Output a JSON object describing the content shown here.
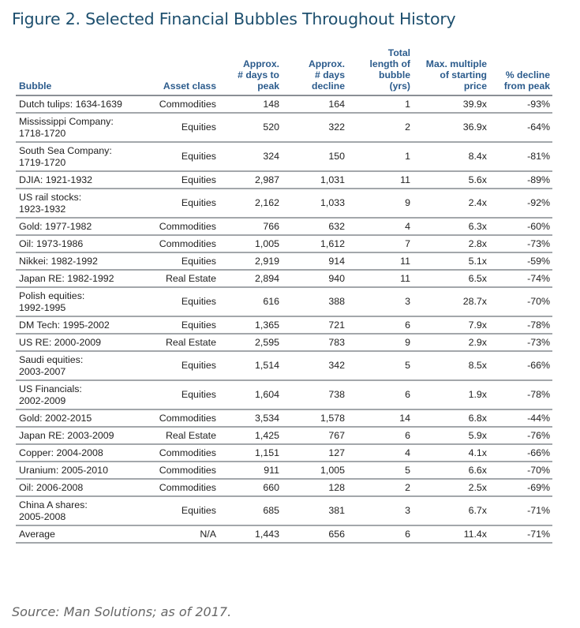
{
  "title": "Figure 2. Selected Financial Bubbles Throughout History",
  "table": {
    "headers": [
      [
        "Bubble"
      ],
      [
        "Asset class"
      ],
      [
        "Approx.",
        "# days to",
        "peak"
      ],
      [
        "Approx.",
        "# days",
        "decline"
      ],
      [
        "Total",
        "length of",
        "bubble",
        "(yrs)"
      ],
      [
        "Max. multiple",
        "of starting",
        "price"
      ],
      [
        "% decline",
        "from peak"
      ]
    ],
    "rows": [
      {
        "bubble": [
          "Dutch tulips: 1634-1639"
        ],
        "asset": "Commodities",
        "peak": "148",
        "decline": "164",
        "yrs": "1",
        "multiple": "39.9x",
        "pct": "-93%"
      },
      {
        "bubble": [
          "Mississippi Company:",
          "1718-1720"
        ],
        "asset": "Equities",
        "peak": "520",
        "decline": "322",
        "yrs": "2",
        "multiple": "36.9x",
        "pct": "-64%"
      },
      {
        "bubble": [
          "South Sea Company:",
          "1719-1720"
        ],
        "asset": "Equities",
        "peak": "324",
        "decline": "150",
        "yrs": "1",
        "multiple": "8.4x",
        "pct": "-81%"
      },
      {
        "bubble": [
          "DJIA: 1921-1932"
        ],
        "asset": "Equities",
        "peak": "2,987",
        "decline": "1,031",
        "yrs": "11",
        "multiple": "5.6x",
        "pct": "-89%"
      },
      {
        "bubble": [
          "US rail stocks:",
          "1923-1932"
        ],
        "asset": "Equities",
        "peak": "2,162",
        "decline": "1,033",
        "yrs": "9",
        "multiple": "2.4x",
        "pct": "-92%"
      },
      {
        "bubble": [
          "Gold: 1977-1982"
        ],
        "asset": "Commodities",
        "peak": "766",
        "decline": "632",
        "yrs": "4",
        "multiple": "6.3x",
        "pct": "-60%"
      },
      {
        "bubble": [
          "Oil: 1973-1986"
        ],
        "asset": "Commodities",
        "peak": "1,005",
        "decline": "1,612",
        "yrs": "7",
        "multiple": "2.8x",
        "pct": "-73%"
      },
      {
        "bubble": [
          "Nikkei: 1982-1992"
        ],
        "asset": "Equities",
        "peak": "2,919",
        "decline": "914",
        "yrs": "11",
        "multiple": "5.1x",
        "pct": "-59%"
      },
      {
        "bubble": [
          "Japan RE: 1982-1992"
        ],
        "asset": "Real Estate",
        "peak": "2,894",
        "decline": "940",
        "yrs": "11",
        "multiple": "6.5x",
        "pct": "-74%"
      },
      {
        "bubble": [
          "Polish equities:",
          "1992-1995"
        ],
        "asset": "Equities",
        "peak": "616",
        "decline": "388",
        "yrs": "3",
        "multiple": "28.7x",
        "pct": "-70%"
      },
      {
        "bubble": [
          "DM Tech: 1995-2002"
        ],
        "asset": "Equities",
        "peak": "1,365",
        "decline": "721",
        "yrs": "6",
        "multiple": "7.9x",
        "pct": "-78%"
      },
      {
        "bubble": [
          "US RE: 2000-2009"
        ],
        "asset": "Real Estate",
        "peak": "2,595",
        "decline": "783",
        "yrs": "9",
        "multiple": "2.9x",
        "pct": "-73%"
      },
      {
        "bubble": [
          "Saudi equities:",
          "2003-2007"
        ],
        "asset": "Equities",
        "peak": "1,514",
        "decline": "342",
        "yrs": "5",
        "multiple": "8.5x",
        "pct": "-66%"
      },
      {
        "bubble": [
          "US Financials:",
          "2002-2009"
        ],
        "asset": "Equities",
        "peak": "1,604",
        "decline": "738",
        "yrs": "6",
        "multiple": "1.9x",
        "pct": "-78%"
      },
      {
        "bubble": [
          "Gold: 2002-2015"
        ],
        "asset": "Commodities",
        "peak": "3,534",
        "decline": "1,578",
        "yrs": "14",
        "multiple": "6.8x",
        "pct": "-44%"
      },
      {
        "bubble": [
          "Japan RE: 2003-2009"
        ],
        "asset": "Real Estate",
        "peak": "1,425",
        "decline": "767",
        "yrs": "6",
        "multiple": "5.9x",
        "pct": "-76%"
      },
      {
        "bubble": [
          "Copper: 2004-2008"
        ],
        "asset": "Commodities",
        "peak": "1,151",
        "decline": "127",
        "yrs": "4",
        "multiple": "4.1x",
        "pct": "-66%"
      },
      {
        "bubble": [
          "Uranium: 2005-2010"
        ],
        "asset": "Commodities",
        "peak": "911",
        "decline": "1,005",
        "yrs": "5",
        "multiple": "6.6x",
        "pct": "-70%"
      },
      {
        "bubble": [
          "Oil: 2006-2008"
        ],
        "asset": "Commodities",
        "peak": "660",
        "decline": "128",
        "yrs": "2",
        "multiple": "2.5x",
        "pct": "-69%"
      },
      {
        "bubble": [
          "China A shares:",
          "2005-2008"
        ],
        "asset": "Equities",
        "peak": "685",
        "decline": "381",
        "yrs": "3",
        "multiple": "6.7x",
        "pct": "-71%"
      },
      {
        "bubble": [
          "Average"
        ],
        "asset": "N/A",
        "peak": "1,443",
        "decline": "656",
        "yrs": "6",
        "multiple": "11.4x",
        "pct": "-71%"
      }
    ]
  },
  "source": "Source: Man Solutions; as of 2017."
}
